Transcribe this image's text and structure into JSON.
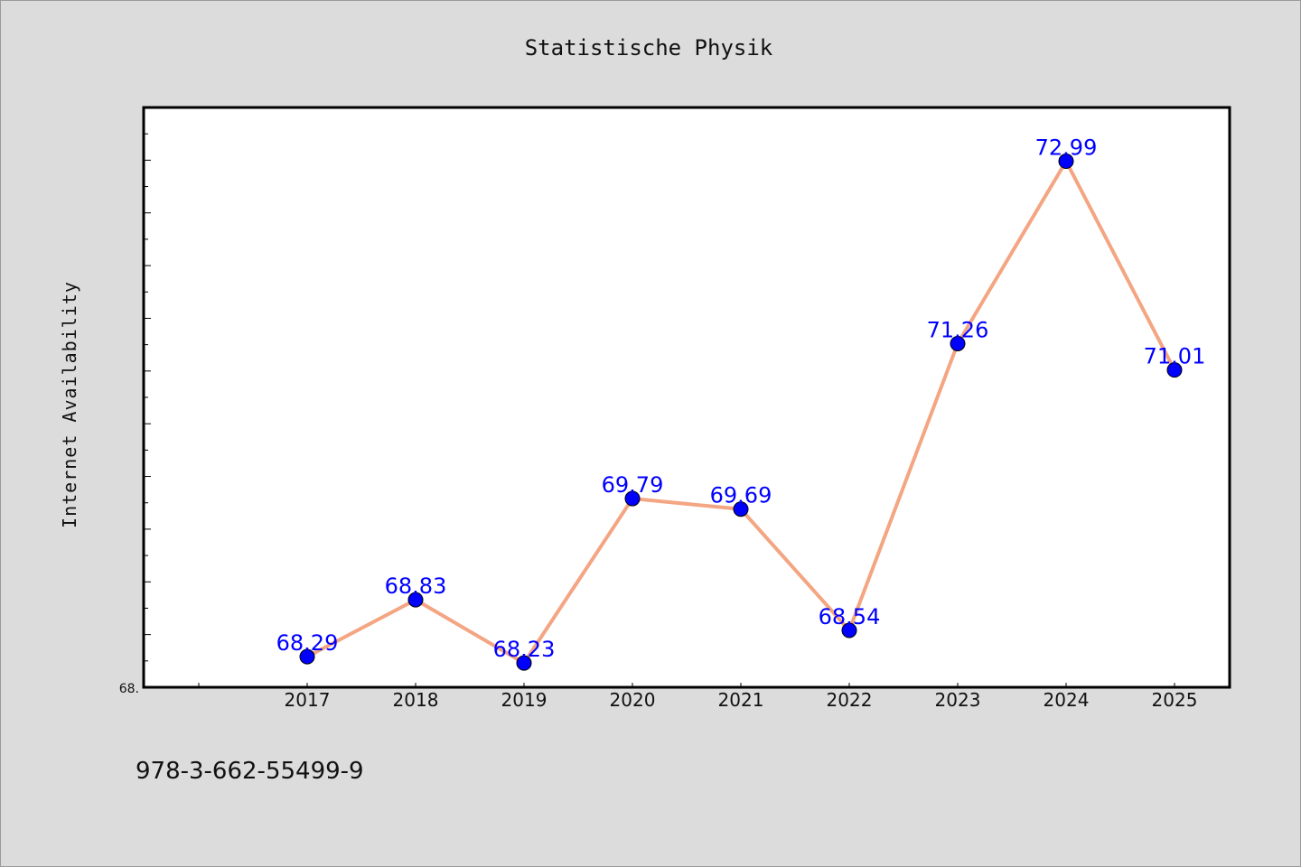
{
  "chart_data": {
    "type": "line",
    "title": "Statistische Physik",
    "xlabel": "",
    "ylabel": "Internet Availability",
    "categories": [
      "2017",
      "2018",
      "2019",
      "2020",
      "2021",
      "2022",
      "2023",
      "2024",
      "2025"
    ],
    "series": [
      {
        "values": [
          68.29,
          68.83,
          68.23,
          69.79,
          69.69,
          68.54,
          71.26,
          72.99,
          71.01
        ],
        "line_color": "#f4a582",
        "marker_color": "#0000ff"
      }
    ],
    "data_labels": [
      "68.29",
      "68.83",
      "68.23",
      "69.79",
      "69.69",
      "68.54",
      "71.26",
      "72.99",
      "71.01"
    ],
    "ylim": [
      68.0,
      73.5
    ],
    "y_tick_labels": [
      "68."
    ],
    "grid": false,
    "legend": "none"
  },
  "footer": {
    "isbn": "978-3-662-55499-9"
  }
}
